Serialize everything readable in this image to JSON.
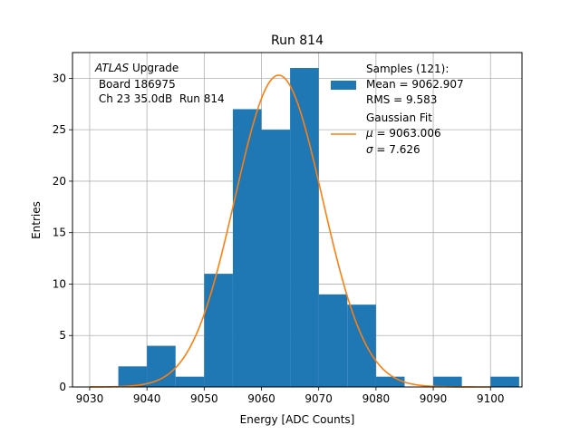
{
  "chart_data": {
    "type": "bar",
    "title": "Run 814",
    "xlabel": "Energy [ADC Counts]",
    "ylabel": "Entries",
    "xlim": [
      9027,
      9105.5
    ],
    "ylim": [
      0,
      32.5
    ],
    "grid": true,
    "x_ticks": [
      9030,
      9040,
      9050,
      9060,
      9070,
      9080,
      9090,
      9100
    ],
    "y_ticks": [
      0,
      5,
      10,
      15,
      20,
      25,
      30
    ],
    "bins": [
      {
        "x0": 9035,
        "x1": 9040,
        "value": 2
      },
      {
        "x0": 9040,
        "x1": 9045,
        "value": 4
      },
      {
        "x0": 9045,
        "x1": 9050,
        "value": 1
      },
      {
        "x0": 9050,
        "x1": 9055,
        "value": 11
      },
      {
        "x0": 9055,
        "x1": 9060,
        "value": 27
      },
      {
        "x0": 9060,
        "x1": 9065,
        "value": 25
      },
      {
        "x0": 9065,
        "x1": 9070,
        "value": 31
      },
      {
        "x0": 9070,
        "x1": 9075,
        "value": 9
      },
      {
        "x0": 9075,
        "x1": 9080,
        "value": 8
      },
      {
        "x0": 9080,
        "x1": 9085,
        "value": 1
      },
      {
        "x0": 9085,
        "x1": 9090,
        "value": 0
      },
      {
        "x0": 9090,
        "x1": 9095,
        "value": 1
      },
      {
        "x0": 9095,
        "x1": 9100,
        "value": 0
      },
      {
        "x0": 9100,
        "x1": 9105,
        "value": 1
      }
    ],
    "fit": {
      "mu": 9063.006,
      "sigma": 7.626,
      "amplitude": 30.3,
      "x_range": [
        9030,
        9100
      ]
    },
    "colors": {
      "bars": "#1f77b4",
      "fit": "#ff7f0e",
      "grid": "#b0b0b0"
    },
    "annotation": {
      "line1_italic": "ATLAS",
      "line1_rest": " Upgrade",
      "line2": " Board 186975",
      "line3": " Ch 23 35.0dB  Run 814"
    },
    "legend": {
      "position": "top-right",
      "samples_line1": "Samples (121):",
      "samples_line2": "Mean = 9062.907",
      "samples_line3": "RMS = 9.583",
      "fit_line1": "Gaussian Fit",
      "fit_mu_symbol": "μ",
      "fit_mu_value": " = 9063.006",
      "fit_sigma_symbol": "σ",
      "fit_sigma_value": " = 7.626"
    }
  }
}
